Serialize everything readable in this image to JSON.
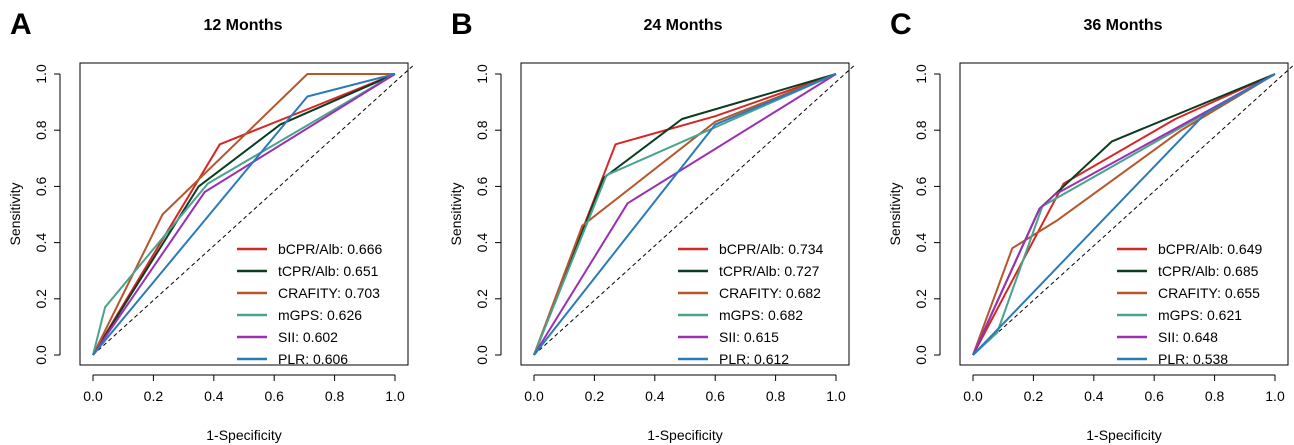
{
  "chart_data": [
    {
      "type": "line",
      "panel_letter": "A",
      "title": "12 Months",
      "xlabel": "1-Specificity",
      "ylabel": "Sensitivity",
      "xlim": [
        0,
        1
      ],
      "ylim": [
        0,
        1
      ],
      "xticks": [
        "0.0",
        "0.2",
        "0.4",
        "0.6",
        "0.8",
        "1.0"
      ],
      "yticks": [
        "0.0",
        "0.2",
        "0.4",
        "0.6",
        "0.8",
        "1.0"
      ],
      "legend_position": "bottom-right",
      "grid": false,
      "series": [
        {
          "name": "bCPR/Alb: 0.666",
          "color": "#d62728",
          "x": [
            0,
            0.42,
            0.7,
            1
          ],
          "y": [
            0,
            0.75,
            0.87,
            1
          ]
        },
        {
          "name": "tCPR/Alb: 0.651",
          "color": "#0b3d20",
          "x": [
            0,
            0.35,
            0.62,
            1
          ],
          "y": [
            0,
            0.6,
            0.82,
            1
          ]
        },
        {
          "name": "CRAFITY: 0.703",
          "color": "#b5572d",
          "x": [
            0,
            0.23,
            0.71,
            1
          ],
          "y": [
            0,
            0.5,
            1.0,
            1
          ]
        },
        {
          "name": "mGPS: 0.626",
          "color": "#4aa38f",
          "x": [
            0,
            0.04,
            0.38,
            1
          ],
          "y": [
            0,
            0.17,
            0.61,
            1
          ]
        },
        {
          "name": "SII: 0.602",
          "color": "#9b30b3",
          "x": [
            0,
            0.37,
            1
          ],
          "y": [
            0,
            0.58,
            1
          ]
        },
        {
          "name": "PLR: 0.606",
          "color": "#2b7bba",
          "x": [
            0,
            0.71,
            1
          ],
          "y": [
            0,
            0.92,
            1
          ]
        }
      ]
    },
    {
      "type": "line",
      "panel_letter": "B",
      "title": "24 Months",
      "xlabel": "1-Specificity",
      "ylabel": "Sensitivity",
      "xlim": [
        0,
        1
      ],
      "ylim": [
        0,
        1
      ],
      "xticks": [
        "0.0",
        "0.2",
        "0.4",
        "0.6",
        "0.8",
        "1.0"
      ],
      "yticks": [
        "0.0",
        "0.2",
        "0.4",
        "0.6",
        "0.8",
        "1.0"
      ],
      "legend_position": "bottom-right",
      "grid": false,
      "series": [
        {
          "name": "bCPR/Alb: 0.734",
          "color": "#d62728",
          "x": [
            0,
            0.27,
            0.6,
            1
          ],
          "y": [
            0,
            0.75,
            0.85,
            1
          ]
        },
        {
          "name": "tCPR/Alb: 0.727",
          "color": "#0b3d20",
          "x": [
            0,
            0.23,
            0.49,
            1
          ],
          "y": [
            0,
            0.63,
            0.84,
            1
          ]
        },
        {
          "name": "CRAFITY: 0.682",
          "color": "#b5572d",
          "x": [
            0,
            0.16,
            0.6,
            1
          ],
          "y": [
            0,
            0.46,
            0.83,
            1
          ]
        },
        {
          "name": "mGPS: 0.682",
          "color": "#4aa38f",
          "x": [
            0,
            0.24,
            1
          ],
          "y": [
            0,
            0.64,
            1
          ]
        },
        {
          "name": "SII: 0.615",
          "color": "#9b30b3",
          "x": [
            0,
            0.31,
            1
          ],
          "y": [
            0,
            0.54,
            1
          ]
        },
        {
          "name": "PLR: 0.612",
          "color": "#2b7bba",
          "x": [
            0,
            0.6,
            1
          ],
          "y": [
            0,
            0.82,
            1
          ]
        }
      ]
    },
    {
      "type": "line",
      "panel_letter": "C",
      "title": "36 Months",
      "xlabel": "1-Specificity",
      "ylabel": "Sensitivity",
      "xlim": [
        0,
        1
      ],
      "ylim": [
        0,
        1
      ],
      "xticks": [
        "0.0",
        "0.2",
        "0.4",
        "0.6",
        "0.8",
        "1.0"
      ],
      "yticks": [
        "0.0",
        "0.2",
        "0.4",
        "0.6",
        "0.8",
        "1.0"
      ],
      "legend_position": "bottom-right",
      "grid": false,
      "series": [
        {
          "name": "bCPR/Alb: 0.649",
          "color": "#d62728",
          "x": [
            0,
            0.3,
            0.67,
            1
          ],
          "y": [
            0,
            0.61,
            0.84,
            1
          ]
        },
        {
          "name": "tCPR/Alb: 0.685",
          "color": "#0b3d20",
          "x": [
            0,
            0.22,
            0.32,
            0.46,
            1
          ],
          "y": [
            0,
            0.52,
            0.62,
            0.76,
            1
          ]
        },
        {
          "name": "CRAFITY: 0.655",
          "color": "#b5572d",
          "x": [
            0,
            0.13,
            0.28,
            0.69,
            1
          ],
          "y": [
            0,
            0.38,
            0.48,
            0.8,
            1
          ]
        },
        {
          "name": "mGPS: 0.621",
          "color": "#4aa38f",
          "x": [
            0,
            0.08,
            0.23,
            1
          ],
          "y": [
            0,
            0.08,
            0.53,
            1
          ]
        },
        {
          "name": "SII: 0.648",
          "color": "#9b30b3",
          "x": [
            0,
            0.22,
            0.27,
            1
          ],
          "y": [
            0,
            0.52,
            0.57,
            1
          ]
        },
        {
          "name": "PLR: 0.538",
          "color": "#2b7bba",
          "x": [
            0,
            0.77,
            1
          ],
          "y": [
            0,
            0.86,
            1
          ]
        }
      ]
    }
  ]
}
